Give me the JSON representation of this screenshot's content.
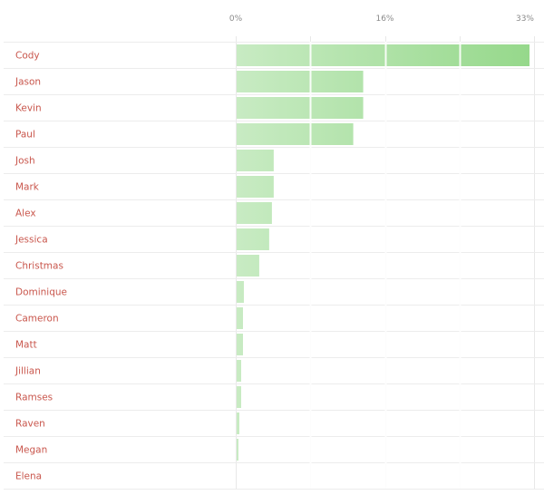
{
  "chart_data": {
    "type": "bar",
    "orientation": "horizontal",
    "title": "",
    "xlabel": "",
    "ylabel": "",
    "xlim": [
      0,
      33
    ],
    "tick_labels": [
      "0%",
      "16%",
      "33%"
    ],
    "grid": true,
    "legend": "none",
    "categories": [
      "Cody",
      "Jason",
      "Kevin",
      "Paul",
      "Josh",
      "Mark",
      "Alex",
      "Jessica",
      "Christmas",
      "Dominique",
      "Cameron",
      "Matt",
      "Jillian",
      "Ramses",
      "Raven",
      "Megan",
      "Elena"
    ],
    "values": [
      32.5,
      14.1,
      14.1,
      13.0,
      4.2,
      4.2,
      4.0,
      3.7,
      2.6,
      0.9,
      0.8,
      0.8,
      0.6,
      0.6,
      0.4,
      0.3,
      0.0
    ]
  },
  "colors": {
    "bar_light": "#c8ebc3",
    "bar_dark": "#95d88a",
    "label": "#c9574d",
    "tick": "#8a8a8a",
    "grid": "#e8e8e8",
    "row_divider": "#ececec"
  }
}
